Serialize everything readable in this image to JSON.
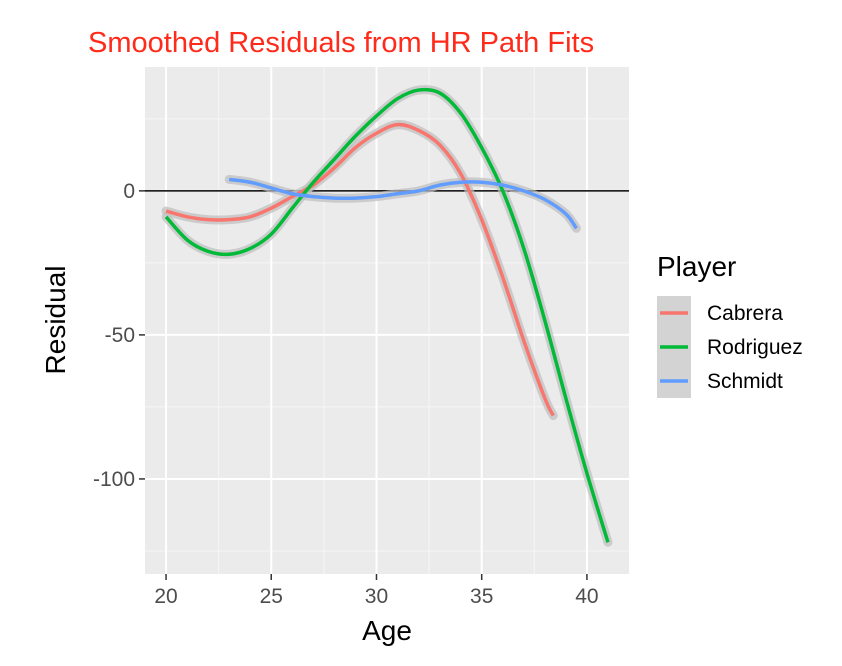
{
  "chart_data": {
    "type": "line",
    "title": "Smoothed Residuals from HR Path Fits",
    "xlabel": "Age",
    "ylabel": "Residual",
    "xlim": [
      19,
      42
    ],
    "ylim": [
      -133,
      43
    ],
    "x_ticks": [
      20,
      25,
      30,
      35,
      40
    ],
    "y_ticks": [
      -100,
      -50,
      0
    ],
    "grid": true,
    "reference_line_y": 0,
    "legend": {
      "title": "Player",
      "placement": "right"
    },
    "series": [
      {
        "name": "Cabrera",
        "color": "#f8766d",
        "x": [
          20,
          21,
          22,
          23,
          24,
          25,
          26,
          27,
          28,
          29,
          30,
          31,
          32,
          33,
          34,
          35,
          36,
          37,
          38,
          38.4
        ],
        "y": [
          -7,
          -9,
          -10,
          -10,
          -9,
          -6,
          -2,
          2,
          8,
          15,
          20,
          23,
          21,
          16,
          6,
          -10,
          -30,
          -52,
          -72,
          -78
        ]
      },
      {
        "name": "Rodriguez",
        "color": "#00ba38",
        "x": [
          20,
          21,
          22,
          23,
          24,
          25,
          26,
          27,
          28,
          29,
          30,
          31,
          32,
          33,
          34,
          35,
          36,
          37,
          38,
          39,
          40,
          41
        ],
        "y": [
          -9,
          -17,
          -21,
          -22,
          -20,
          -15,
          -6,
          3,
          11,
          19,
          26,
          32,
          35,
          34,
          27,
          15,
          0,
          -20,
          -45,
          -72,
          -98,
          -122
        ]
      },
      {
        "name": "Schmidt",
        "color": "#619cff",
        "x": [
          23,
          24,
          25,
          26,
          27,
          28,
          29,
          30,
          31,
          32,
          33,
          34,
          35,
          36,
          37,
          38,
          39,
          39.5
        ],
        "y": [
          4,
          3,
          1,
          -1,
          -2,
          -2.5,
          -2.5,
          -2,
          -1,
          0,
          2,
          3,
          3,
          2,
          0,
          -3,
          -8,
          -13
        ]
      }
    ]
  }
}
